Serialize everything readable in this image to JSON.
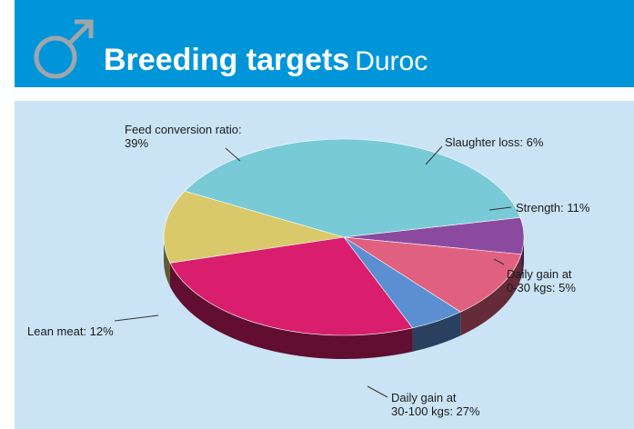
{
  "header": {
    "title_main": "Breeding targets",
    "title_sub": "Duroc",
    "bg_color": "#0095d9",
    "icon": "male-symbol-icon"
  },
  "chart_data": {
    "type": "pie",
    "title": "Breeding targets Duroc",
    "slices": [
      {
        "label_line1": "Feed conversion ratio:",
        "label_line2": "39%",
        "value": 39,
        "color": "#77cad6"
      },
      {
        "label_line1": "Slaughter loss: 6%",
        "label_line2": "",
        "value": 6,
        "color": "#8b4a9f"
      },
      {
        "label_line1": "Strength: 11%",
        "label_line2": "",
        "value": 11,
        "color": "#e0607f"
      },
      {
        "label_line1": "Daily gain at",
        "label_line2": "0-30 kgs: 5%",
        "value": 5,
        "color": "#5b8fd1"
      },
      {
        "label_line1": "Daily gain at",
        "label_line2": "30-100 kgs: 27%",
        "value": 27,
        "color": "#d81e6c"
      },
      {
        "label_line1": "Lean meat: 12%",
        "label_line2": "",
        "value": 12,
        "color": "#d9c96a"
      }
    ]
  }
}
